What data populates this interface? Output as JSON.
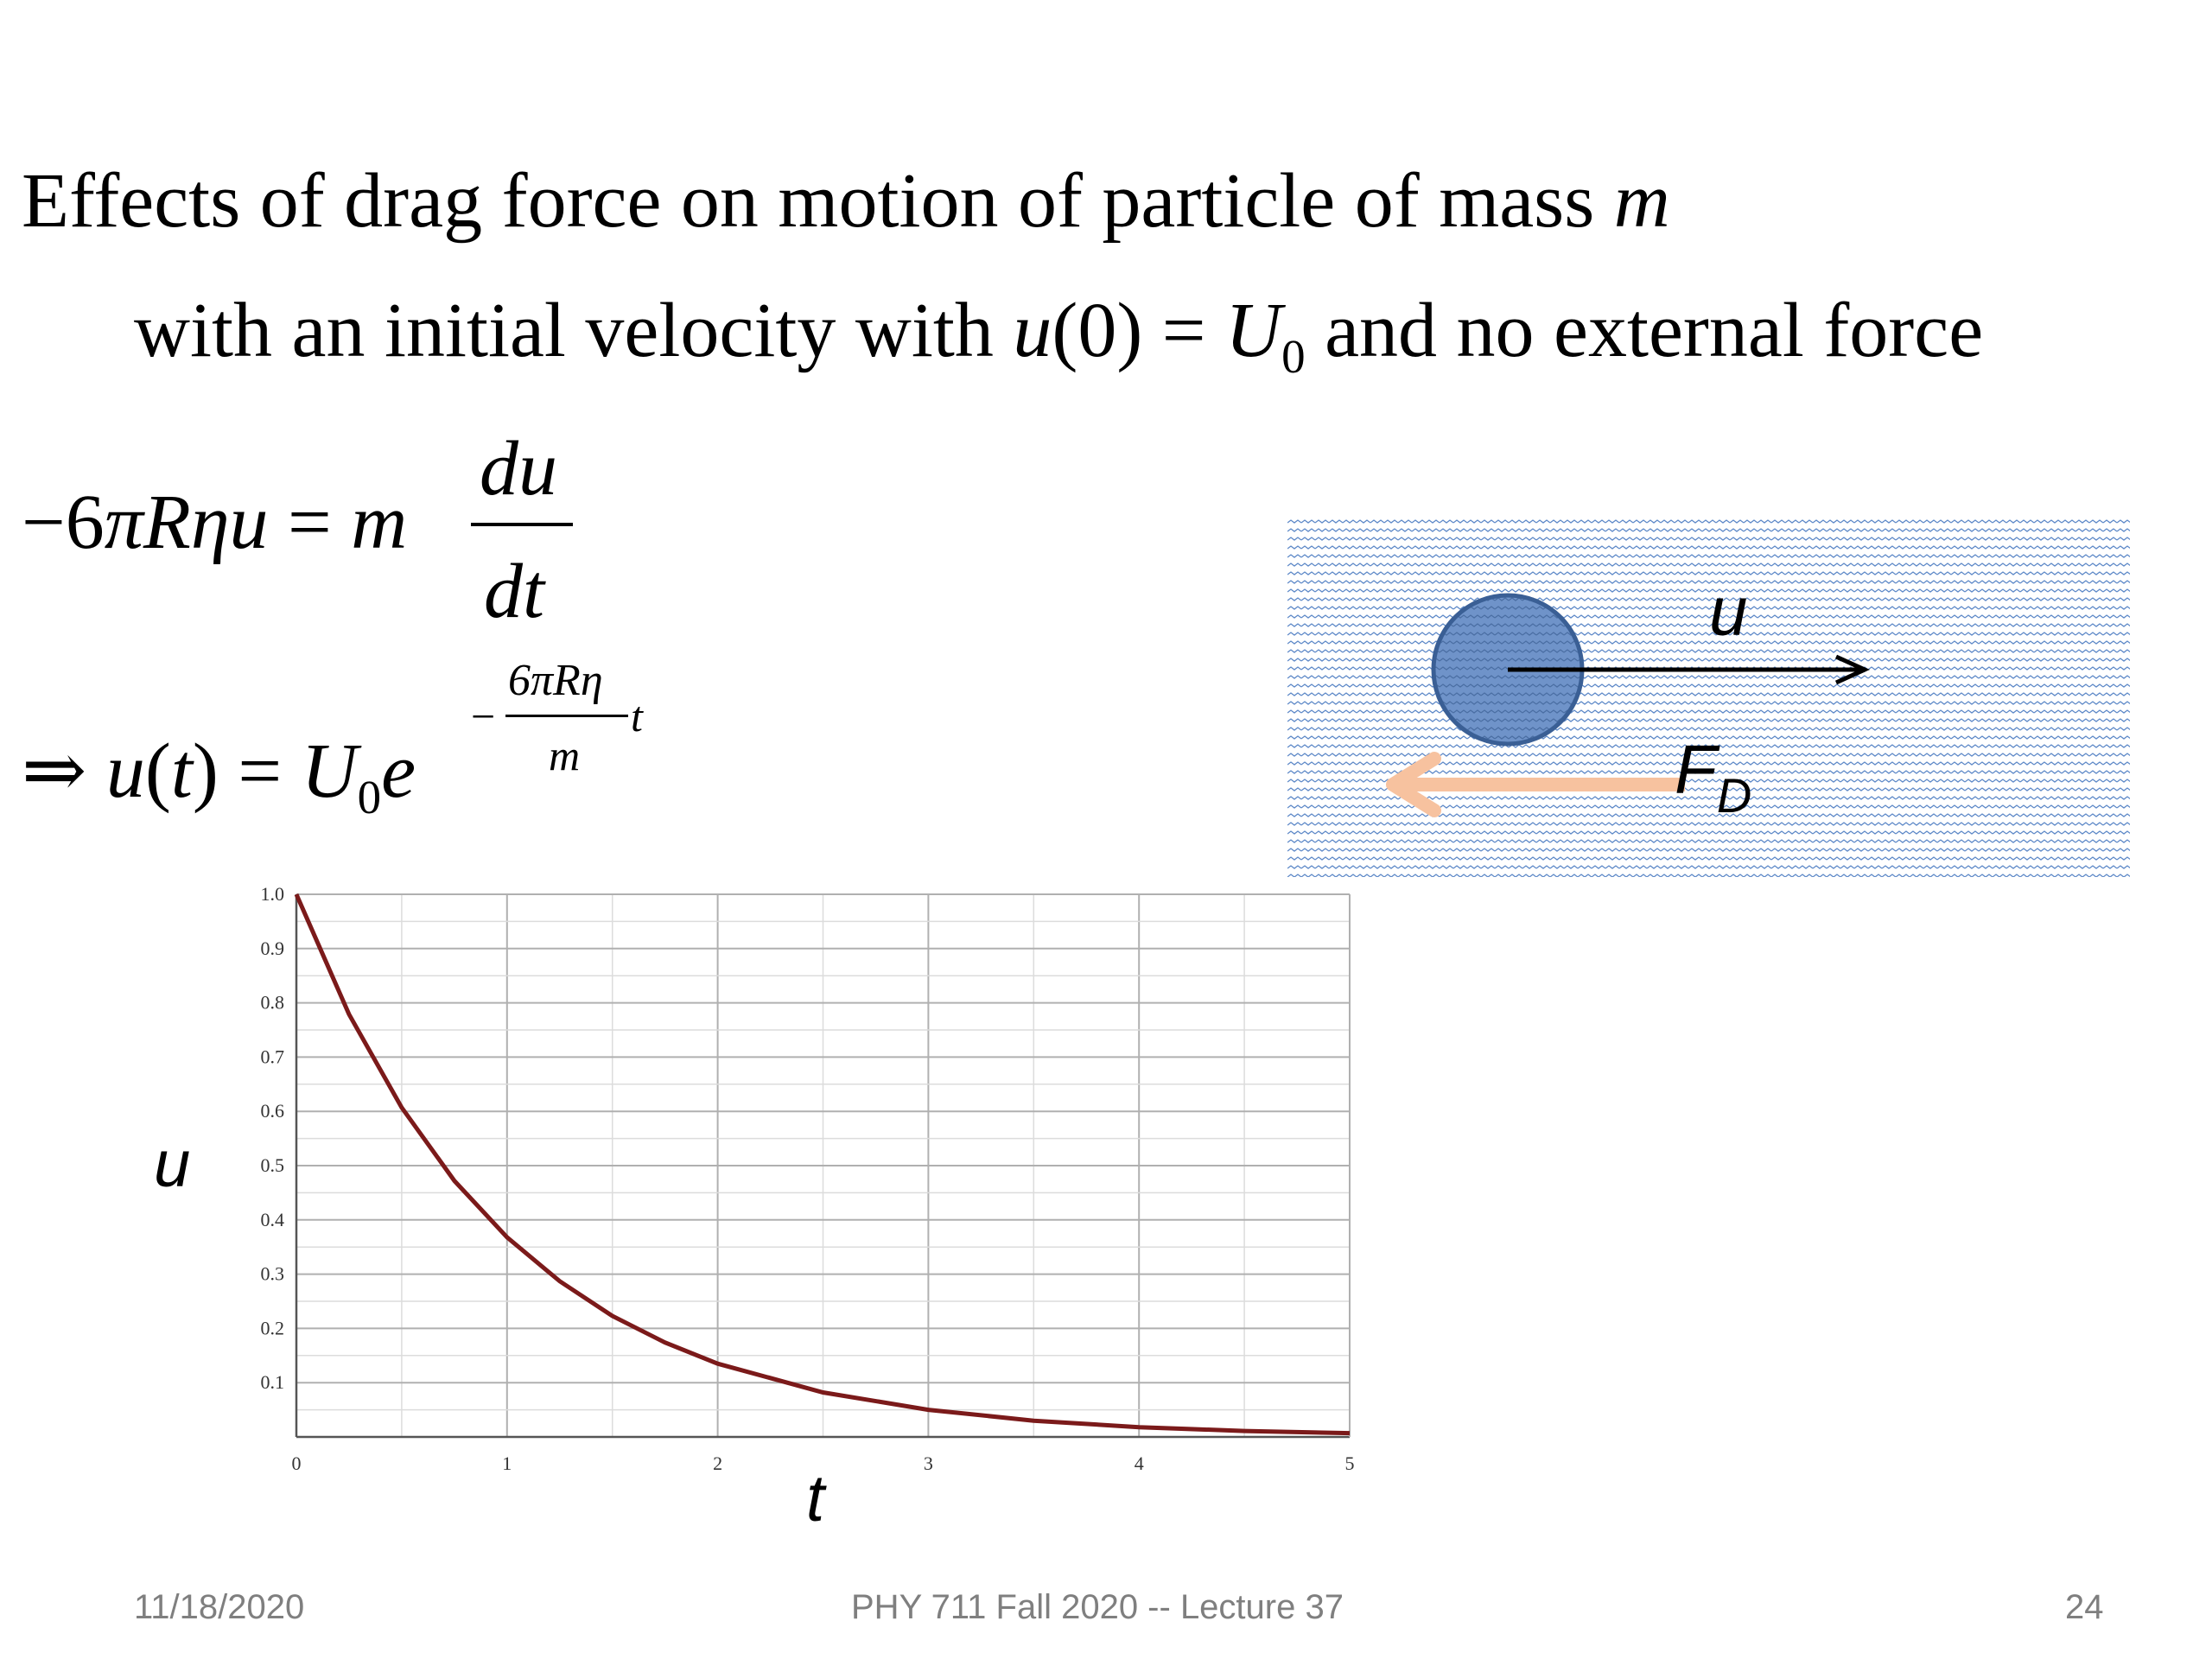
{
  "slide": {
    "title_line1_text": "Effects of drag force on motion of  particle of mass ",
    "title_line1_var": "m",
    "title_line2_a": "with an initial velocity  with ",
    "title_line2_u": "u",
    "title_line2_paren": "(0)",
    "title_line2_eq": " = ",
    "title_line2_U": "U",
    "title_line2_sub": "0",
    "title_line2_b": " and no external force"
  },
  "equations": {
    "eq1_lhs_minus": "−6",
    "eq1_pi": "π",
    "eq1_R": "R",
    "eq1_eta": "η",
    "eq1_u": "u",
    "eq1_equals": " = ",
    "eq1_m": "m",
    "eq1_num": "du",
    "eq1_den": "dt",
    "eq2_implies": "⇒",
    "eq2_u": "u",
    "eq2_open": "(",
    "eq2_t": "t",
    "eq2_close": ")",
    "eq2_equals": " = ",
    "eq2_U": "U",
    "eq2_sub": "0",
    "eq2_e": "e",
    "eq2_exp_minus": "−",
    "eq2_exp_num": "6πRη",
    "eq2_exp_den": "m",
    "eq2_exp_t": "t"
  },
  "diagram": {
    "velocity_label": "u",
    "drag_label_main": "F",
    "drag_label_sub": "D",
    "colors": {
      "fluid_pattern": "#5b87c7",
      "particle_fill": "#6f93c9",
      "particle_stroke": "#3a5f95",
      "drag_arrow": "#f7c29f",
      "velocity_arrow": "#000000"
    }
  },
  "chart_data": {
    "type": "line",
    "function": "u = e^(-t)",
    "series": [
      {
        "x": [
          0,
          0.25,
          0.5,
          0.75,
          1,
          1.25,
          1.5,
          1.75,
          2,
          2.5,
          3,
          3.5,
          4,
          4.5,
          5
        ],
        "values": [
          1.0,
          0.779,
          0.607,
          0.472,
          0.368,
          0.287,
          0.223,
          0.174,
          0.135,
          0.082,
          0.05,
          0.03,
          0.018,
          0.011,
          0.007
        ],
        "color": "#7b1a1a"
      }
    ],
    "xlabel": "t",
    "ylabel": "u",
    "xlim": [
      0,
      5
    ],
    "ylim": [
      0,
      1.0
    ],
    "xticks": [
      "0",
      "1",
      "2",
      "3",
      "4",
      "5"
    ],
    "yticks": [
      "0.1",
      "0.2",
      "0.3",
      "0.4",
      "0.5",
      "0.6",
      "0.7",
      "0.8",
      "0.9",
      "1.0"
    ],
    "grid": true
  },
  "footer": {
    "date": "11/18/2020",
    "course": "PHY 711  Fall 2020 -- Lecture 37",
    "page": "24"
  }
}
